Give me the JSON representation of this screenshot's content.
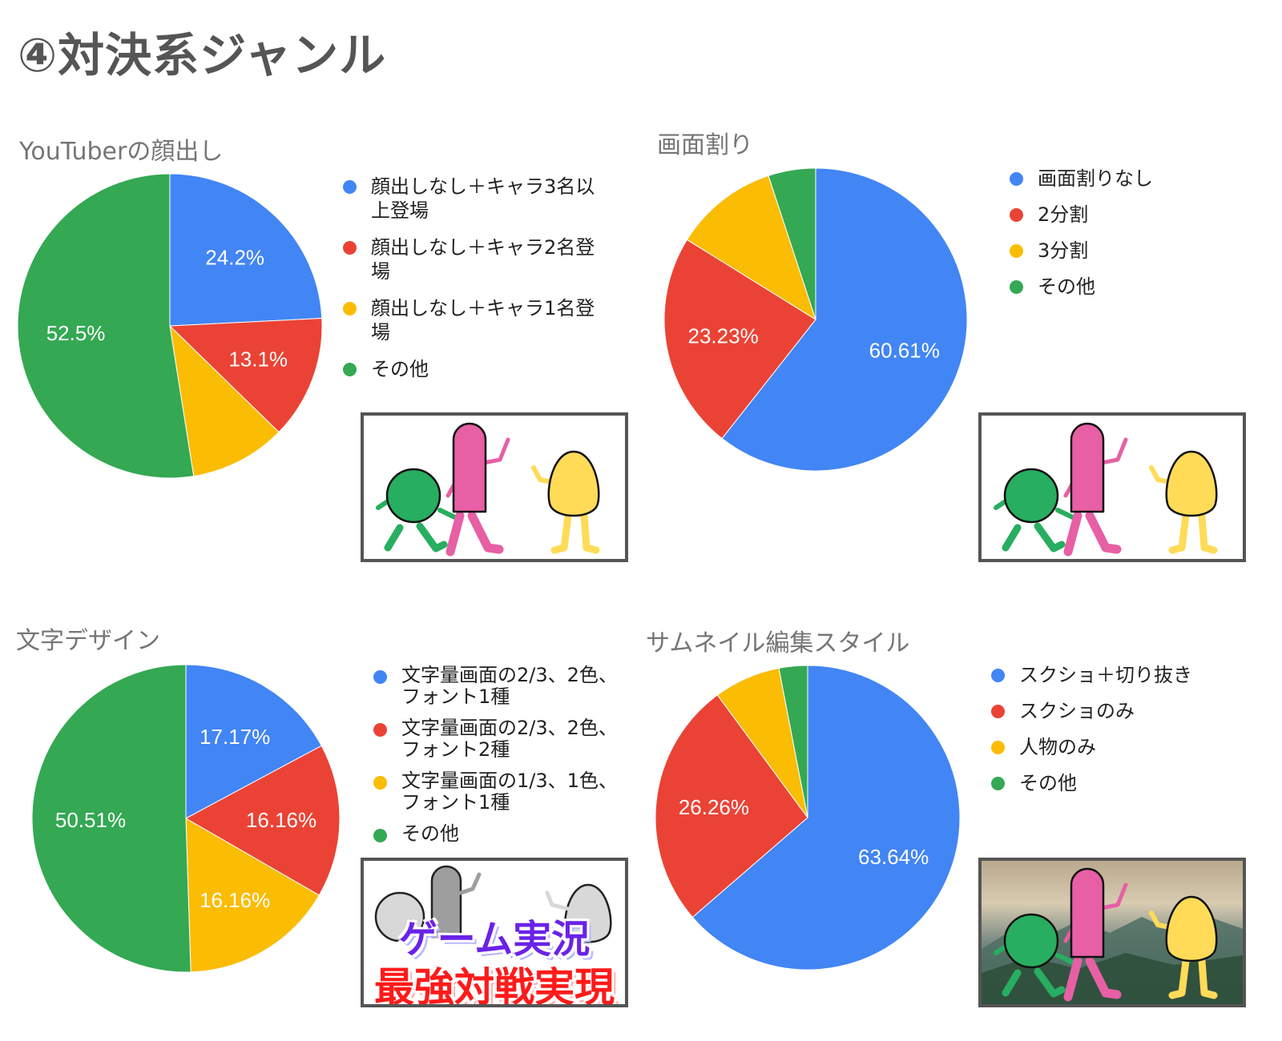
{
  "page": {
    "title": "④対決系ジャンル"
  },
  "colors": {
    "blue": "#4285f4",
    "red": "#ea4335",
    "yellow": "#fbbc04",
    "green": "#34a853",
    "title_gray": "#555555",
    "chart_title_gray": "#757575"
  },
  "charts": [
    {
      "title": "YouTuberの顔出し",
      "legend": [
        {
          "label": "顔出しなし＋キャラ3名以上登場",
          "color": "#4285f4"
        },
        {
          "label": "顔出しなし＋キャラ2名登場",
          "color": "#ea4335"
        },
        {
          "label": "顔出しなし＋キャラ1名登場",
          "color": "#fbbc04"
        },
        {
          "label": "その他",
          "color": "#34a853"
        }
      ],
      "slice_labels": [
        "24.2%",
        "13.1%",
        "",
        "52.5%"
      ]
    },
    {
      "title": "画面割り",
      "legend": [
        {
          "label": "画面割りなし",
          "color": "#4285f4"
        },
        {
          "label": "2分割",
          "color": "#ea4335"
        },
        {
          "label": "3分割",
          "color": "#fbbc04"
        },
        {
          "label": "その他",
          "color": "#34a853"
        }
      ],
      "slice_labels": [
        "60.61%",
        "23.23%",
        "",
        ""
      ]
    },
    {
      "title": "文字デザイン",
      "legend": [
        {
          "label": "文字量画面の2/3、2色、フォント1種",
          "color": "#4285f4"
        },
        {
          "label": "文字量画面の2/3、2色、フォント2種",
          "color": "#ea4335"
        },
        {
          "label": "文字量画面の1/3、1色、フォント1種",
          "color": "#fbbc04"
        },
        {
          "label": "その他",
          "color": "#34a853"
        }
      ],
      "slice_labels": [
        "17.17%",
        "16.16%",
        "16.16%",
        "50.51%"
      ],
      "thumbnail_text": {
        "line1": "ゲーム実況",
        "line2": "最強対戦実現"
      }
    },
    {
      "title": "サムネイル編集スタイル",
      "legend": [
        {
          "label": "スクショ＋切り抜き",
          "color": "#4285f4"
        },
        {
          "label": "スクショのみ",
          "color": "#ea4335"
        },
        {
          "label": "人物のみ",
          "color": "#fbbc04"
        },
        {
          "label": "その他",
          "color": "#34a853"
        }
      ],
      "slice_labels": [
        "63.64%",
        "26.26%",
        "",
        ""
      ]
    }
  ],
  "chart_data": [
    {
      "type": "pie",
      "title": "YouTuberの顔出し",
      "categories": [
        "顔出しなし＋キャラ3名以上登場",
        "顔出しなし＋キャラ2名登場",
        "顔出しなし＋キャラ1名登場",
        "その他"
      ],
      "values": [
        24.2,
        13.1,
        10.2,
        52.5
      ],
      "labels_shown": [
        "24.2%",
        "13.1%",
        null,
        "52.5%"
      ],
      "colors": [
        "#4285f4",
        "#ea4335",
        "#fbbc04",
        "#34a853"
      ],
      "legend_position": "right",
      "start_angle": 0,
      "direction": "clockwise"
    },
    {
      "type": "pie",
      "title": "画面割り",
      "categories": [
        "画面割りなし",
        "2分割",
        "3分割",
        "その他"
      ],
      "values": [
        60.61,
        23.23,
        11.11,
        5.05
      ],
      "labels_shown": [
        "60.61%",
        "23.23%",
        null,
        null
      ],
      "colors": [
        "#4285f4",
        "#ea4335",
        "#fbbc04",
        "#34a853"
      ],
      "legend_position": "right",
      "start_angle": 0,
      "direction": "clockwise"
    },
    {
      "type": "pie",
      "title": "文字デザイン",
      "categories": [
        "文字量画面の2/3、2色、フォント1種",
        "文字量画面の2/3、2色、フォント2種",
        "文字量画面の1/3、1色、フォント1種",
        "その他"
      ],
      "values": [
        17.17,
        16.16,
        16.16,
        50.51
      ],
      "labels_shown": [
        "17.17%",
        "16.16%",
        "16.16%",
        "50.51%"
      ],
      "colors": [
        "#4285f4",
        "#ea4335",
        "#fbbc04",
        "#34a853"
      ],
      "legend_position": "right",
      "start_angle": 0,
      "direction": "clockwise"
    },
    {
      "type": "pie",
      "title": "サムネイル編集スタイル",
      "categories": [
        "スクショ＋切り抜き",
        "スクショのみ",
        "人物のみ",
        "その他"
      ],
      "values": [
        63.64,
        26.26,
        7.07,
        3.03
      ],
      "labels_shown": [
        "63.64%",
        "26.26%",
        null,
        null
      ],
      "colors": [
        "#4285f4",
        "#ea4335",
        "#fbbc04",
        "#34a853"
      ],
      "legend_position": "right",
      "start_angle": 0,
      "direction": "clockwise"
    }
  ]
}
